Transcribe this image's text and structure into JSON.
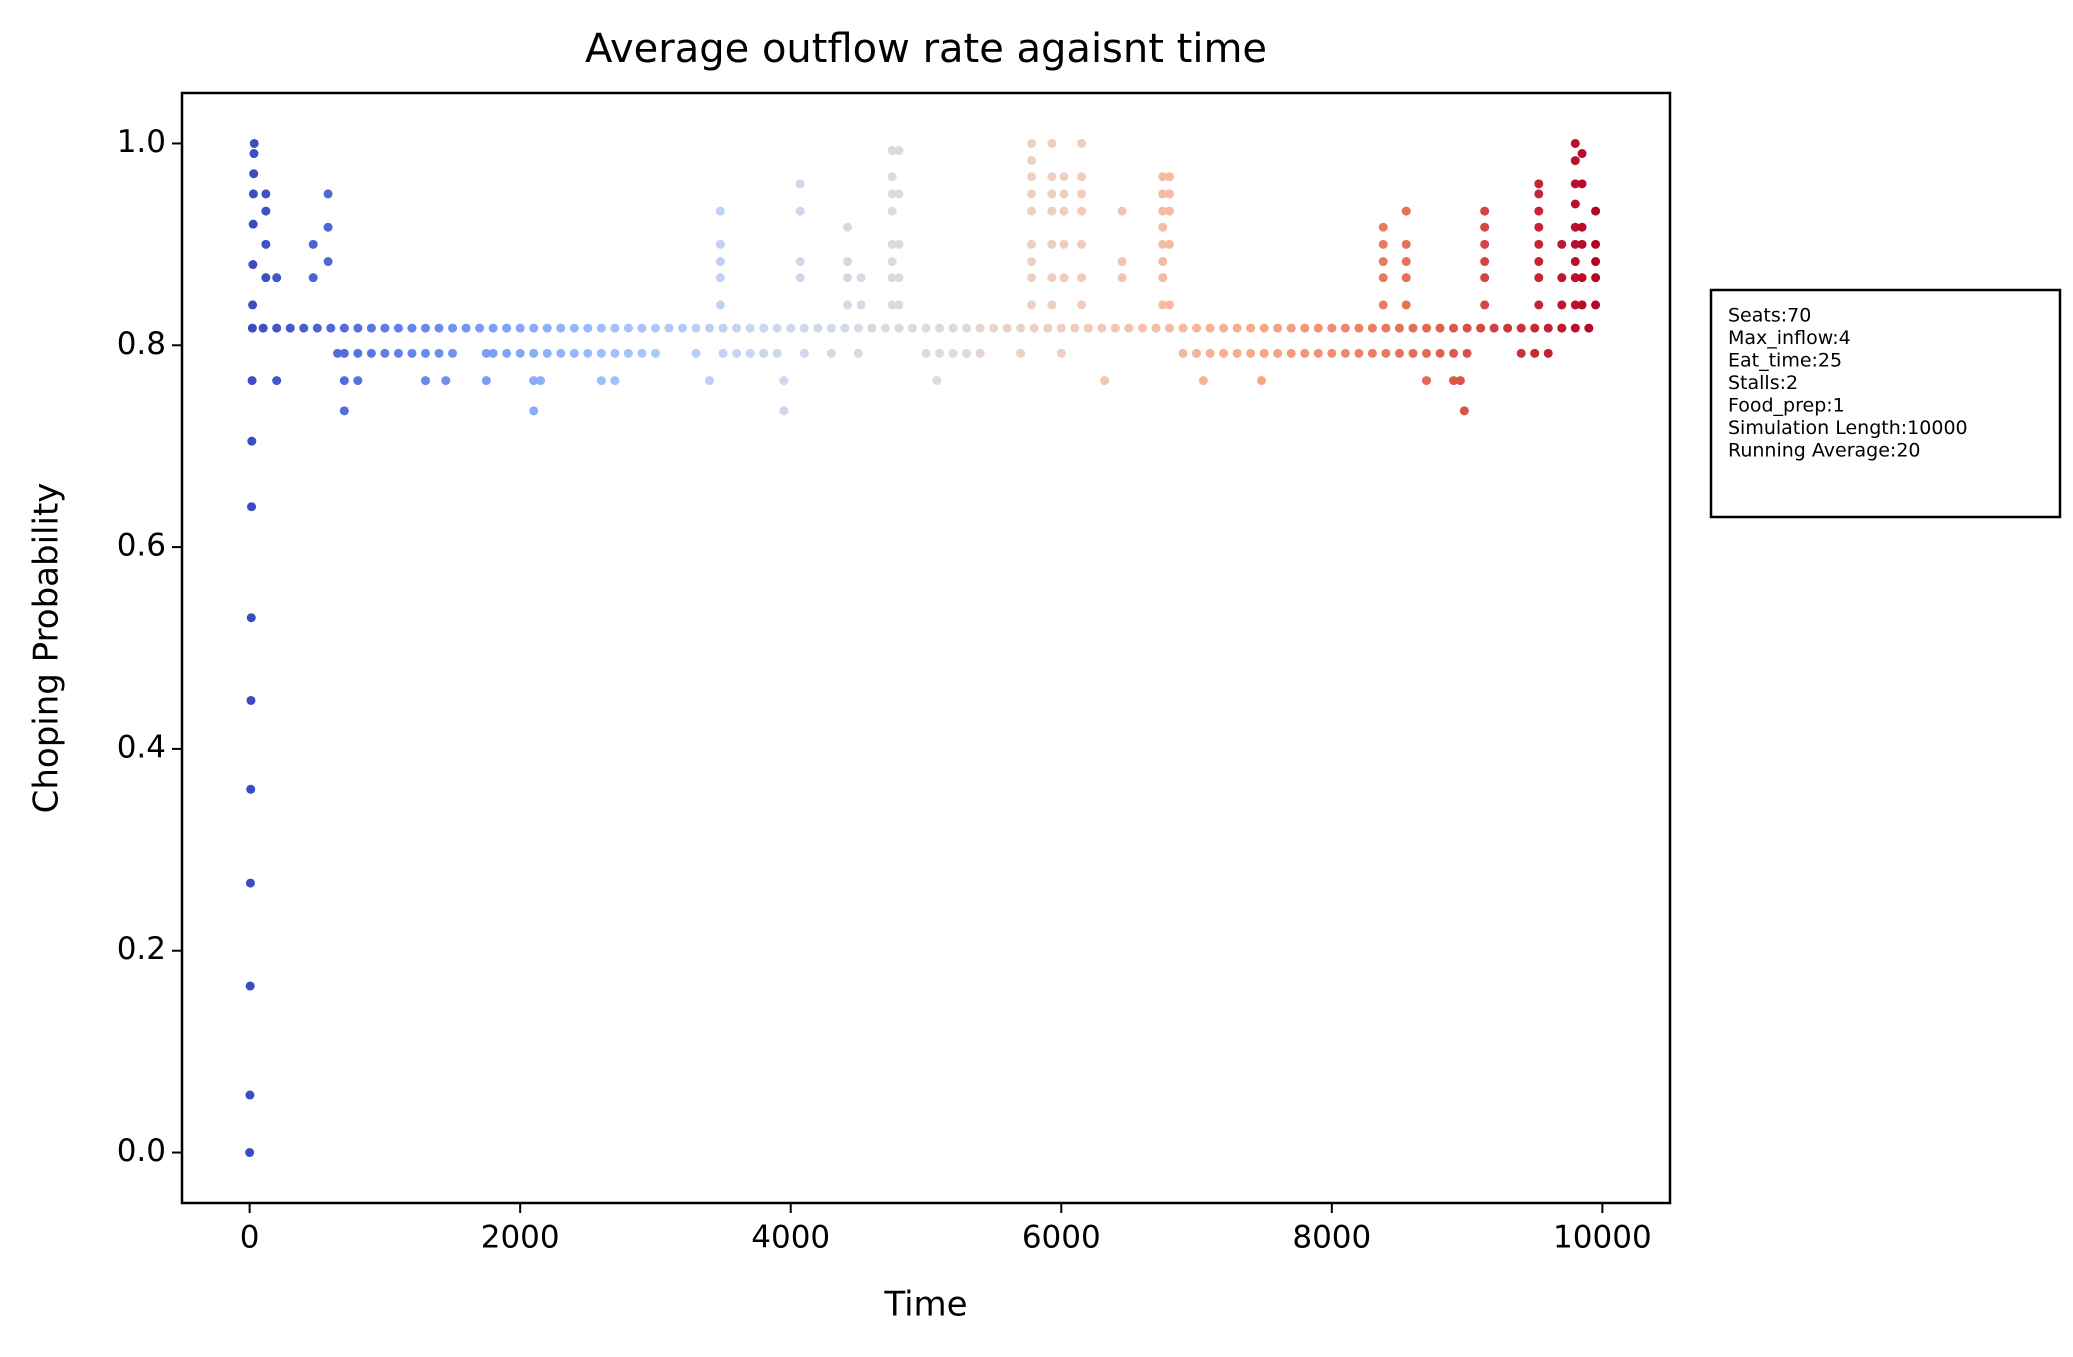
{
  "chart_data": {
    "type": "scatter",
    "title": "Average outflow rate agaisnt time",
    "x_label": "Time",
    "y_label": "Choping Probability",
    "annotation": [
      "Seats:70",
      "Max_inflow:4",
      "Eat_time:25",
      "Stalls:2",
      "Food_prep:1",
      "Simulation Length:10000",
      "Running Average:20"
    ],
    "colormap": [
      "#3b4cc0",
      "#6688ee",
      "#9abbff",
      "#c9d7f0",
      "#dddcdc",
      "#f2cbb7",
      "#f7a889",
      "#e26952",
      "#b40426"
    ],
    "xlim": [
      -500,
      10500
    ],
    "ylim": [
      -0.05,
      1.05
    ],
    "xticks": [
      0,
      2000,
      4000,
      6000,
      8000,
      10000
    ],
    "yticks": [
      {
        "value": 0,
        "label": "0.0"
      },
      {
        "value": 0.2,
        "label": "0.2"
      },
      {
        "value": 0.4,
        "label": "0.4"
      },
      {
        "value": 0.6,
        "label": "0.6"
      },
      {
        "value": 0.8,
        "label": "0.8"
      },
      {
        "value": 1,
        "label": "1.0"
      }
    ],
    "x": [
      0,
      2,
      4,
      6,
      8,
      10,
      12,
      14,
      16,
      18,
      20,
      22,
      24,
      26,
      28,
      30,
      32,
      34,
      100,
      200,
      300,
      400,
      500,
      600,
      700,
      800,
      900,
      1000,
      1100,
      1200,
      1300,
      1400,
      1500,
      1600,
      1700,
      1800,
      1900,
      2000,
      2100,
      2200,
      2300,
      2400,
      2500,
      2600,
      2700,
      2800,
      2900,
      3000,
      3100,
      3200,
      3300,
      3400,
      3500,
      3600,
      3700,
      3800,
      3900,
      4000,
      4100,
      4200,
      4300,
      4400,
      4500,
      4600,
      4700,
      4800,
      4900,
      5000,
      5100,
      5200,
      5300,
      5400,
      5500,
      5600,
      5700,
      5800,
      5900,
      6000,
      6100,
      6200,
      6300,
      6400,
      6500,
      6600,
      6700,
      6800,
      6900,
      7000,
      7100,
      7200,
      7300,
      7400,
      7500,
      7600,
      7700,
      7800,
      7900,
      8000,
      8100,
      8200,
      8300,
      8400,
      8500,
      8600,
      8700,
      8800,
      8900,
      9000,
      9100,
      9200,
      9300,
      9400,
      9500,
      9600,
      9700,
      9800,
      9900,
      650,
      700,
      800,
      900,
      1000,
      1100,
      1200,
      1300,
      1400,
      1500,
      1750,
      1800,
      1900,
      2000,
      2100,
      2200,
      2300,
      2400,
      2500,
      2600,
      2700,
      2800,
      2900,
      3000,
      3300,
      3500,
      3600,
      3700,
      3800,
      3900,
      4100,
      4300,
      4500,
      5000,
      5100,
      5200,
      5300,
      5400,
      5700,
      6000,
      6900,
      7000,
      7100,
      7200,
      7300,
      7400,
      7500,
      7600,
      7700,
      7800,
      7900,
      8000,
      8100,
      8200,
      8300,
      8400,
      8500,
      8600,
      8700,
      8800,
      8900,
      9000,
      9400,
      9500,
      9600,
      200,
      700,
      800,
      1300,
      1450,
      1750,
      2100,
      2150,
      2600,
      2700,
      3400,
      3950,
      5080,
      6320,
      7050,
      7480,
      8700,
      8900,
      8950,
      700,
      2100,
      3950,
      8980,
      120,
      120,
      120,
      120,
      200,
      470,
      470,
      580,
      580,
      580,
      3480,
      3480,
      3480,
      3480,
      3480,
      4070,
      4070,
      4070,
      4070,
      4420,
      4420,
      4420,
      4420,
      4520,
      4520,
      4750,
      4750,
      4750,
      4750,
      4750,
      4750,
      4750,
      4750,
      4800,
      4800,
      4800,
      4800,
      4800,
      5780,
      5780,
      5780,
      5780,
      5780,
      5780,
      5780,
      5780,
      5780,
      5930,
      5930,
      5930,
      5930,
      5930,
      5930,
      5930,
      6020,
      6020,
      6020,
      6020,
      6020,
      6150,
      6150,
      6150,
      6150,
      6150,
      6150,
      6150,
      6450,
      6450,
      6450,
      6750,
      6750,
      6750,
      6750,
      6750,
      6750,
      6750,
      6750,
      6800,
      6800,
      6800,
      6800,
      6800,
      8380,
      8380,
      8380,
      8380,
      8380,
      8550,
      8550,
      8550,
      8550,
      8550,
      9130,
      9130,
      9130,
      9130,
      9130,
      9130,
      9530,
      9530,
      9530,
      9530,
      9530,
      9530,
      9530,
      9530,
      9700,
      9700,
      9700,
      9800,
      9800,
      9800,
      9800,
      9800,
      9800,
      9800,
      9800,
      9800,
      9850,
      9850,
      9850,
      9850,
      9850,
      9850,
      9950,
      9950,
      9950,
      9950,
      9950
    ],
    "values": [
      0,
      0.057,
      0.165,
      0.267,
      0.36,
      0.448,
      0.53,
      0.64,
      0.705,
      0.765,
      0.817,
      0.84,
      0.88,
      0.92,
      0.95,
      0.97,
      0.99,
      1.0,
      0.817,
      0.817,
      0.817,
      0.817,
      0.817,
      0.817,
      0.817,
      0.817,
      0.817,
      0.817,
      0.817,
      0.817,
      0.817,
      0.817,
      0.817,
      0.817,
      0.817,
      0.817,
      0.817,
      0.817,
      0.817,
      0.817,
      0.817,
      0.817,
      0.817,
      0.817,
      0.817,
      0.817,
      0.817,
      0.817,
      0.817,
      0.817,
      0.817,
      0.817,
      0.817,
      0.817,
      0.817,
      0.817,
      0.817,
      0.817,
      0.817,
      0.817,
      0.817,
      0.817,
      0.817,
      0.817,
      0.817,
      0.817,
      0.817,
      0.817,
      0.817,
      0.817,
      0.817,
      0.817,
      0.817,
      0.817,
      0.817,
      0.817,
      0.817,
      0.817,
      0.817,
      0.817,
      0.817,
      0.817,
      0.817,
      0.817,
      0.817,
      0.817,
      0.817,
      0.817,
      0.817,
      0.817,
      0.817,
      0.817,
      0.817,
      0.817,
      0.817,
      0.817,
      0.817,
      0.817,
      0.817,
      0.817,
      0.817,
      0.817,
      0.817,
      0.817,
      0.817,
      0.817,
      0.817,
      0.817,
      0.817,
      0.817,
      0.817,
      0.817,
      0.817,
      0.817,
      0.817,
      0.817,
      0.817,
      0.792,
      0.792,
      0.792,
      0.792,
      0.792,
      0.792,
      0.792,
      0.792,
      0.792,
      0.792,
      0.792,
      0.792,
      0.792,
      0.792,
      0.792,
      0.792,
      0.792,
      0.792,
      0.792,
      0.792,
      0.792,
      0.792,
      0.792,
      0.792,
      0.792,
      0.792,
      0.792,
      0.792,
      0.792,
      0.792,
      0.792,
      0.792,
      0.792,
      0.792,
      0.792,
      0.792,
      0.792,
      0.792,
      0.792,
      0.792,
      0.792,
      0.792,
      0.792,
      0.792,
      0.792,
      0.792,
      0.792,
      0.792,
      0.792,
      0.792,
      0.792,
      0.792,
      0.792,
      0.792,
      0.792,
      0.792,
      0.792,
      0.792,
      0.792,
      0.792,
      0.792,
      0.792,
      0.792,
      0.792,
      0.792,
      0.765,
      0.765,
      0.765,
      0.765,
      0.765,
      0.765,
      0.765,
      0.765,
      0.765,
      0.765,
      0.765,
      0.765,
      0.765,
      0.765,
      0.765,
      0.765,
      0.765,
      0.765,
      0.765,
      0.735,
      0.735,
      0.735,
      0.735,
      0.95,
      0.933,
      0.9,
      0.867,
      0.867,
      0.9,
      0.867,
      0.883,
      0.917,
      0.95,
      0.84,
      0.867,
      0.883,
      0.9,
      0.933,
      0.867,
      0.883,
      0.933,
      0.96,
      0.84,
      0.867,
      0.883,
      0.917,
      0.84,
      0.867,
      0.84,
      0.867,
      0.883,
      0.9,
      0.933,
      0.95,
      0.967,
      0.993,
      0.84,
      0.867,
      0.9,
      0.95,
      0.993,
      0.84,
      0.867,
      0.883,
      0.9,
      0.933,
      0.95,
      0.967,
      0.983,
      1.0,
      0.84,
      0.867,
      0.9,
      0.933,
      0.95,
      0.967,
      1.0,
      0.867,
      0.9,
      0.933,
      0.95,
      0.967,
      0.84,
      0.867,
      0.9,
      0.933,
      0.95,
      0.967,
      1.0,
      0.867,
      0.883,
      0.933,
      0.84,
      0.867,
      0.883,
      0.9,
      0.917,
      0.933,
      0.95,
      0.967,
      0.84,
      0.9,
      0.933,
      0.95,
      0.967,
      0.84,
      0.867,
      0.883,
      0.9,
      0.917,
      0.84,
      0.867,
      0.883,
      0.9,
      0.933,
      0.84,
      0.867,
      0.883,
      0.9,
      0.917,
      0.933,
      0.84,
      0.867,
      0.883,
      0.9,
      0.917,
      0.933,
      0.95,
      0.96,
      0.84,
      0.867,
      0.9,
      0.84,
      0.867,
      0.883,
      0.9,
      0.917,
      0.94,
      0.96,
      0.983,
      1.0,
      0.84,
      0.867,
      0.9,
      0.917,
      0.96,
      0.99,
      0.84,
      0.867,
      0.883,
      0.9,
      0.933
    ]
  }
}
